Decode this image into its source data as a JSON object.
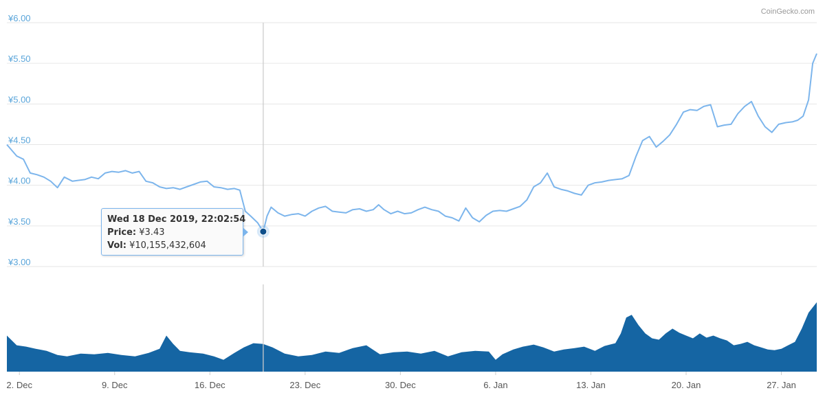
{
  "credit": "CoinGecko.com",
  "colors": {
    "price_line": "#7cb5ec",
    "volume_fill": "#1565a3",
    "axis_label": "#5aa5da",
    "grid": "#e6e6e6",
    "marker": "#0d4f8b"
  },
  "tooltip": {
    "title": "Wed 18 Dec 2019, 22:02:54",
    "price_label": "Price:",
    "price_value": "¥3.43",
    "vol_label": "Vol:",
    "vol_value": "¥10,155,432,604"
  },
  "chart_data": {
    "type": "line",
    "y_ticks": [
      "¥3.00",
      "¥3.50",
      "¥4.00",
      "¥4.50",
      "¥5.00",
      "¥5.50",
      "¥6.00"
    ],
    "y_tick_values": [
      3.0,
      3.5,
      4.0,
      4.5,
      5.0,
      5.5,
      6.0
    ],
    "ylim": [
      3.0,
      6.0
    ],
    "x_ticks": [
      "2. Dec",
      "9. Dec",
      "16. Dec",
      "23. Dec",
      "30. Dec",
      "6. Jan",
      "13. Jan",
      "20. Jan",
      "27. Jan"
    ],
    "x_tick_days": [
      1,
      8,
      15,
      22,
      29,
      36,
      43,
      50,
      57
    ],
    "x_unit": "days from 1. Dec 2019",
    "xlim": [
      0.08,
      59.6
    ],
    "highlight": {
      "x": 18.92,
      "price": 3.43
    },
    "price_series": {
      "x": [
        0.08,
        0.8,
        1.3,
        1.8,
        2.3,
        2.8,
        3.3,
        3.8,
        4.3,
        4.9,
        5.3,
        5.8,
        6.3,
        6.8,
        7.3,
        7.8,
        8.3,
        8.8,
        9.3,
        9.8,
        10.3,
        10.8,
        11.3,
        11.8,
        12.3,
        12.8,
        13.3,
        13.8,
        14.3,
        14.8,
        15.3,
        15.8,
        16.3,
        16.8,
        17.2,
        17.6,
        18.0,
        18.5,
        18.92,
        19.2,
        19.5,
        20.0,
        20.5,
        21.0,
        21.5,
        22.0,
        22.5,
        23.0,
        23.5,
        24.0,
        24.5,
        25.0,
        25.5,
        26.0,
        26.5,
        27.0,
        27.4,
        27.8,
        28.3,
        28.8,
        29.3,
        29.8,
        30.3,
        30.8,
        31.3,
        31.8,
        32.3,
        32.8,
        33.3,
        33.8,
        34.3,
        34.8,
        35.3,
        35.8,
        36.3,
        36.8,
        37.3,
        37.8,
        38.3,
        38.8,
        39.3,
        39.8,
        40.3,
        40.8,
        41.3,
        41.8,
        42.3,
        42.8,
        43.3,
        43.8,
        44.3,
        44.8,
        45.3,
        45.8,
        46.3,
        46.8,
        47.3,
        47.8,
        48.3,
        48.8,
        49.3,
        49.8,
        50.3,
        50.8,
        51.3,
        51.8,
        52.3,
        52.8,
        53.3,
        53.8,
        54.3,
        54.8,
        55.3,
        55.8,
        56.3,
        56.8,
        57.3,
        57.8,
        58.2,
        58.6,
        59.0,
        59.3,
        59.6
      ],
      "y": [
        4.5,
        4.36,
        4.32,
        4.15,
        4.13,
        4.1,
        4.05,
        3.97,
        4.1,
        4.05,
        4.06,
        4.07,
        4.1,
        4.08,
        4.15,
        4.17,
        4.16,
        4.18,
        4.15,
        4.17,
        4.05,
        4.03,
        3.98,
        3.96,
        3.97,
        3.95,
        3.98,
        4.01,
        4.04,
        4.05,
        3.98,
        3.97,
        3.95,
        3.96,
        3.94,
        3.68,
        3.62,
        3.54,
        3.43,
        3.62,
        3.73,
        3.66,
        3.62,
        3.64,
        3.65,
        3.62,
        3.68,
        3.72,
        3.74,
        3.68,
        3.67,
        3.66,
        3.7,
        3.71,
        3.68,
        3.7,
        3.76,
        3.7,
        3.65,
        3.68,
        3.65,
        3.66,
        3.7,
        3.73,
        3.7,
        3.68,
        3.62,
        3.6,
        3.56,
        3.72,
        3.6,
        3.55,
        3.63,
        3.68,
        3.69,
        3.68,
        3.71,
        3.74,
        3.82,
        3.98,
        4.03,
        4.15,
        3.98,
        3.95,
        3.93,
        3.9,
        3.88,
        4.0,
        4.03,
        4.04,
        4.06,
        4.07,
        4.08,
        4.12,
        4.35,
        4.55,
        4.6,
        4.47,
        4.54,
        4.62,
        4.75,
        4.9,
        4.93,
        4.92,
        4.97,
        4.99,
        4.72,
        4.74,
        4.75,
        4.88,
        4.97,
        5.03,
        4.85,
        4.72,
        4.65,
        4.75,
        4.77,
        4.78,
        4.8,
        4.85,
        5.05,
        5.5,
        5.62
      ]
    },
    "volume_series": {
      "x": [
        0.08,
        0.8,
        1.5,
        2.2,
        3.0,
        3.8,
        4.5,
        5.5,
        6.5,
        7.5,
        8.5,
        9.5,
        10.5,
        11.3,
        11.8,
        12.3,
        12.8,
        13.5,
        14.5,
        15.3,
        16.0,
        16.8,
        17.5,
        18.2,
        18.9,
        19.6,
        20.5,
        21.5,
        22.5,
        23.5,
        24.5,
        25.5,
        26.5,
        27.5,
        28.5,
        29.5,
        30.5,
        31.5,
        32.5,
        33.5,
        34.5,
        35.5,
        36.0,
        36.5,
        37.3,
        38.0,
        38.8,
        39.5,
        40.3,
        41.0,
        41.8,
        42.5,
        43.3,
        44.0,
        44.8,
        45.2,
        45.6,
        46.0,
        46.5,
        47.0,
        47.5,
        48.0,
        48.5,
        49.0,
        49.5,
        50.0,
        50.5,
        51.0,
        51.5,
        52.0,
        52.5,
        53.0,
        53.5,
        54.0,
        54.5,
        55.0,
        55.5,
        56.0,
        56.5,
        57.0,
        57.5,
        58.0,
        58.5,
        59.0,
        59.6
      ],
      "v": [
        0.52,
        0.38,
        0.36,
        0.33,
        0.3,
        0.24,
        0.22,
        0.26,
        0.25,
        0.27,
        0.24,
        0.22,
        0.27,
        0.33,
        0.52,
        0.4,
        0.3,
        0.28,
        0.26,
        0.22,
        0.17,
        0.27,
        0.35,
        0.41,
        0.4,
        0.35,
        0.26,
        0.22,
        0.24,
        0.29,
        0.27,
        0.34,
        0.38,
        0.25,
        0.28,
        0.29,
        0.26,
        0.3,
        0.22,
        0.28,
        0.3,
        0.29,
        0.17,
        0.25,
        0.32,
        0.36,
        0.39,
        0.35,
        0.29,
        0.32,
        0.34,
        0.36,
        0.3,
        0.37,
        0.41,
        0.55,
        0.78,
        0.82,
        0.67,
        0.55,
        0.48,
        0.46,
        0.55,
        0.62,
        0.56,
        0.52,
        0.48,
        0.55,
        0.49,
        0.52,
        0.48,
        0.45,
        0.38,
        0.4,
        0.43,
        0.38,
        0.35,
        0.32,
        0.31,
        0.33,
        0.38,
        0.43,
        0.62,
        0.85,
        1.0
      ]
    }
  }
}
